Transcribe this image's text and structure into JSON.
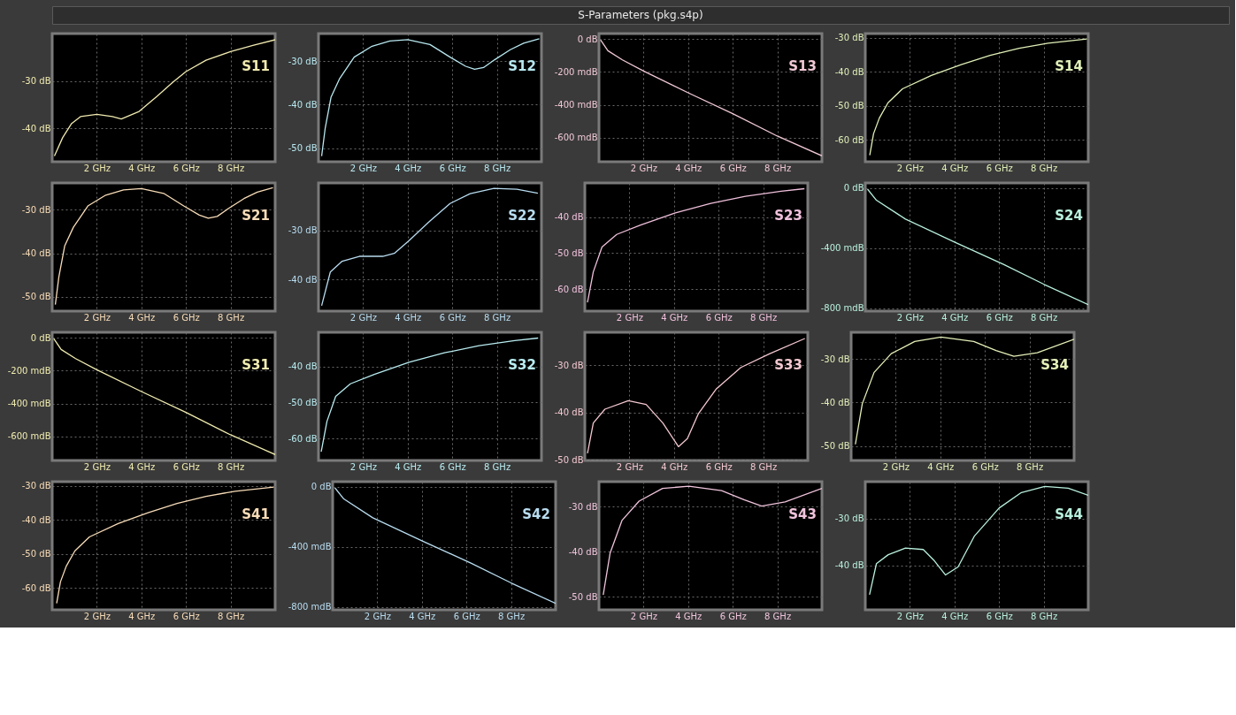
{
  "chart_data": [
    {
      "type": "other",
      "title": "S-Parameters (pkg.s4p)"
    },
    {
      "type": "line",
      "xlim": [
        0,
        10
      ],
      "xticks": [
        {
          "value": 2,
          "label": "2 GHz"
        },
        {
          "value": 4,
          "label": "4 GHz"
        },
        {
          "value": 6,
          "label": "6 GHz"
        },
        {
          "value": 8,
          "label": "8 GHz"
        }
      ],
      "ylim": [
        -47,
        -20
      ],
      "yticks": [
        {
          "value": -30,
          "label": "-30 dB"
        },
        {
          "value": -40,
          "label": "-40 dB"
        }
      ],
      "grid": true,
      "series": [
        {
          "name": "S11",
          "color": "#f0eab0",
          "x": [
            0.1,
            0.47,
            0.86,
            1.27,
            2,
            2.7,
            3.1,
            3.9,
            4.7,
            5.4,
            6.0,
            6.9,
            8.0,
            9.0,
            10
          ],
          "values": [
            -45.8,
            -41.9,
            -39.0,
            -37.5,
            -37.0,
            -37.5,
            -38.0,
            -36.4,
            -33.2,
            -30.3,
            -28.0,
            -25.6,
            -23.8,
            -22.5,
            -21.3
          ]
        }
      ]
    },
    {
      "type": "line",
      "xlim": [
        0,
        10
      ],
      "xticks": [
        {
          "value": 2,
          "label": "2 GHz"
        },
        {
          "value": 4,
          "label": "4 GHz"
        },
        {
          "value": 6,
          "label": "6 GHz"
        },
        {
          "value": 8,
          "label": "8 GHz"
        }
      ],
      "ylim": [
        -53.1,
        -23.7
      ],
      "yticks": [
        {
          "value": -30,
          "label": "-30 dB"
        },
        {
          "value": -40,
          "label": "-40 dB"
        },
        {
          "value": -50,
          "label": "-50 dB"
        }
      ],
      "grid": true,
      "series": [
        {
          "name": "S12",
          "color": "#b8e8f0",
          "x": [
            0.14,
            0.3,
            0.56,
            0.95,
            1.6,
            2.4,
            3.2,
            4.0,
            5.0,
            5.9,
            6.6,
            7.0,
            7.4,
            7.9,
            8.6,
            9.2,
            9.9
          ],
          "values": [
            -51.8,
            -45.4,
            -38.3,
            -34.0,
            -29.1,
            -26.6,
            -25.4,
            -25.1,
            -26.2,
            -29.1,
            -31.2,
            -31.9,
            -31.5,
            -29.7,
            -27.4,
            -25.9,
            -24.9
          ]
        }
      ]
    },
    {
      "type": "line",
      "xlim": [
        0,
        10
      ],
      "xticks": [
        {
          "value": 2,
          "label": "2 GHz"
        },
        {
          "value": 4,
          "label": "4 GHz"
        },
        {
          "value": 6,
          "label": "6 GHz"
        },
        {
          "value": 8,
          "label": "8 GHz"
        }
      ],
      "ylim": [
        -746,
        33
      ],
      "yticks": [
        {
          "value": 0,
          "label": "0 dB"
        },
        {
          "value": -200,
          "label": "-200 mdB"
        },
        {
          "value": -400,
          "label": "-400 mdB"
        },
        {
          "value": -600,
          "label": "-600 mdB"
        }
      ],
      "grid": true,
      "series": [
        {
          "name": "S13",
          "color": "#f0c8d4",
          "x": [
            0.07,
            0.4,
            1.05,
            2.0,
            4.0,
            6.0,
            8.0,
            10.0
          ],
          "values": [
            -5,
            -71,
            -127,
            -195,
            -327,
            -454,
            -590,
            -710
          ]
        }
      ]
    },
    {
      "type": "line",
      "xlim": [
        0,
        10
      ],
      "xticks": [
        {
          "value": 2,
          "label": "2 GHz"
        },
        {
          "value": 4,
          "label": "4 GHz"
        },
        {
          "value": 6,
          "label": "6 GHz"
        },
        {
          "value": 8,
          "label": "8 GHz"
        }
      ],
      "ylim": [
        -66.4,
        -28.8
      ],
      "yticks": [
        {
          "value": -30,
          "label": "-30 dB"
        },
        {
          "value": -40,
          "label": "-40 dB"
        },
        {
          "value": -50,
          "label": "-50 dB"
        },
        {
          "value": -60,
          "label": "-60 dB"
        }
      ],
      "grid": true,
      "series": [
        {
          "name": "S14",
          "color": "#e0f0b8",
          "x": [
            0.2,
            0.37,
            0.63,
            1.02,
            1.67,
            2.96,
            4.3,
            5.6,
            6.9,
            8.2,
            9.94
          ],
          "values": [
            -64.5,
            -58.2,
            -53.6,
            -49.1,
            -45.0,
            -41.1,
            -37.9,
            -35.2,
            -33.1,
            -31.6,
            -30.4
          ]
        }
      ]
    },
    {
      "type": "line",
      "xlim": [
        0,
        10
      ],
      "xticks": [
        {
          "value": 2,
          "label": "2 GHz"
        },
        {
          "value": 4,
          "label": "4 GHz"
        },
        {
          "value": 6,
          "label": "6 GHz"
        },
        {
          "value": 8,
          "label": "8 GHz"
        }
      ],
      "ylim": [
        -53.3,
        -23.8
      ],
      "yticks": [
        {
          "value": -30,
          "label": "-30 dB"
        },
        {
          "value": -40,
          "label": "-40 dB"
        },
        {
          "value": -50,
          "label": "-50 dB"
        }
      ],
      "grid": true,
      "series": [
        {
          "name": "S21",
          "color": "#f8dcb8",
          "x": [
            0.14,
            0.3,
            0.56,
            0.95,
            1.6,
            2.4,
            3.2,
            4.0,
            5.0,
            5.9,
            6.6,
            7.0,
            7.4,
            7.9,
            8.6,
            9.2,
            9.9
          ],
          "values": [
            -51.8,
            -45.4,
            -38.3,
            -34.0,
            -29.1,
            -26.6,
            -25.4,
            -25.1,
            -26.2,
            -29.1,
            -31.2,
            -31.9,
            -31.5,
            -29.7,
            -27.4,
            -25.9,
            -24.9
          ]
        }
      ]
    },
    {
      "type": "line",
      "xlim": [
        0,
        10
      ],
      "xticks": [
        {
          "value": 2,
          "label": "2 GHz"
        },
        {
          "value": 4,
          "label": "4 GHz"
        },
        {
          "value": 6,
          "label": "6 GHz"
        },
        {
          "value": 8,
          "label": "8 GHz"
        }
      ],
      "ylim": [
        -46.5,
        -20.3
      ],
      "yticks": [
        {
          "value": -30,
          "label": "-30 dB"
        },
        {
          "value": -40,
          "label": "-40 dB"
        }
      ],
      "grid": true,
      "series": [
        {
          "name": "S22",
          "color": "#b8dcf0",
          "x": [
            0.14,
            0.53,
            1.06,
            1.83,
            2.88,
            3.4,
            4.06,
            4.99,
            5.9,
            6.8,
            7.87,
            8.9,
            9.84
          ],
          "values": [
            -45.4,
            -38.5,
            -36.3,
            -35.3,
            -35.3,
            -34.7,
            -32.1,
            -28.1,
            -24.5,
            -22.5,
            -21.4,
            -21.6,
            -22.4
          ]
        }
      ]
    },
    {
      "type": "line",
      "xlim": [
        0,
        10
      ],
      "xticks": [
        {
          "value": 2,
          "label": "2 GHz"
        },
        {
          "value": 4,
          "label": "4 GHz"
        },
        {
          "value": 6,
          "label": "6 GHz"
        },
        {
          "value": 8,
          "label": "8 GHz"
        }
      ],
      "ylim": [
        -66.1,
        -30.5
      ],
      "yticks": [
        {
          "value": -40,
          "label": "-40 dB"
        },
        {
          "value": -50,
          "label": "-50 dB"
        },
        {
          "value": -60,
          "label": "-60 dB"
        }
      ],
      "grid": true,
      "series": [
        {
          "name": "S23",
          "color": "#f0c0dc",
          "x": [
            0.12,
            0.38,
            0.77,
            1.43,
            2.5,
            4.06,
            5.65,
            7.2,
            8.8,
            9.85
          ],
          "values": [
            -63.7,
            -55.2,
            -48.3,
            -44.8,
            -42.2,
            -38.8,
            -36.2,
            -34.2,
            -32.8,
            -32.1
          ]
        }
      ]
    },
    {
      "type": "line",
      "xlim": [
        0,
        10
      ],
      "xticks": [
        {
          "value": 2,
          "label": "2 GHz"
        },
        {
          "value": 4,
          "label": "4 GHz"
        },
        {
          "value": 6,
          "label": "6 GHz"
        },
        {
          "value": 8,
          "label": "8 GHz"
        }
      ],
      "ylim": [
        -818,
        34
      ],
      "yticks": [
        {
          "value": 0,
          "label": "0 dB"
        },
        {
          "value": -400,
          "label": "-400 mdB"
        },
        {
          "value": -800,
          "label": "-800 mdB"
        }
      ],
      "grid": true,
      "series": [
        {
          "name": "S24",
          "color": "#b8f0dc",
          "x": [
            0.1,
            0.5,
            1.8,
            4.0,
            6.2,
            8.0,
            10.0
          ],
          "values": [
            -7,
            -81,
            -206,
            -359,
            -507,
            -639,
            -775
          ]
        }
      ]
    },
    {
      "type": "line",
      "xlim": [
        0,
        10
      ],
      "xticks": [
        {
          "value": 2,
          "label": "2 GHz"
        },
        {
          "value": 4,
          "label": "4 GHz"
        },
        {
          "value": 6,
          "label": "6 GHz"
        },
        {
          "value": 8,
          "label": "8 GHz"
        }
      ],
      "ylim": [
        -746,
        33
      ],
      "yticks": [
        {
          "value": 0,
          "label": "0 dB"
        },
        {
          "value": -200,
          "label": "-200 mdB"
        },
        {
          "value": -400,
          "label": "-400 mdB"
        },
        {
          "value": -600,
          "label": "-600 mdB"
        }
      ],
      "grid": true,
      "series": [
        {
          "name": "S31",
          "color": "#f0ecb0",
          "x": [
            0.07,
            0.4,
            1.05,
            2.0,
            4.0,
            6.0,
            8.0,
            10.0
          ],
          "values": [
            -5,
            -71,
            -127,
            -195,
            -327,
            -454,
            -590,
            -710
          ]
        }
      ]
    },
    {
      "type": "line",
      "xlim": [
        0,
        10
      ],
      "xticks": [
        {
          "value": 2,
          "label": "2 GHz"
        },
        {
          "value": 4,
          "label": "4 GHz"
        },
        {
          "value": 6,
          "label": "6 GHz"
        },
        {
          "value": 8,
          "label": "8 GHz"
        }
      ],
      "ylim": [
        -66.1,
        -30.5
      ],
      "yticks": [
        {
          "value": -40,
          "label": "-40 dB"
        },
        {
          "value": -50,
          "label": "-50 dB"
        },
        {
          "value": -60,
          "label": "-60 dB"
        }
      ],
      "grid": true,
      "series": [
        {
          "name": "S32",
          "color": "#b8ecf0",
          "x": [
            0.12,
            0.38,
            0.77,
            1.43,
            2.5,
            4.06,
            5.65,
            7.2,
            8.8,
            9.85
          ],
          "values": [
            -63.7,
            -55.2,
            -48.3,
            -44.8,
            -42.2,
            -38.8,
            -36.2,
            -34.2,
            -32.8,
            -32.1
          ]
        }
      ]
    },
    {
      "type": "line",
      "xlim": [
        0,
        10
      ],
      "xticks": [
        {
          "value": 2,
          "label": "2 GHz"
        },
        {
          "value": 4,
          "label": "4 GHz"
        },
        {
          "value": 6,
          "label": "6 GHz"
        },
        {
          "value": 8,
          "label": "8 GHz"
        }
      ],
      "ylim": [
        -50.1,
        -23.1
      ],
      "yticks": [
        {
          "value": -30,
          "label": "-30 dB"
        },
        {
          "value": -40,
          "label": "-40 dB"
        },
        {
          "value": -50,
          "label": "-50 dB"
        }
      ],
      "grid": true,
      "series": [
        {
          "name": "S33",
          "color": "#f4c8d0",
          "x": [
            0.12,
            0.38,
            0.9,
            1.95,
            2.75,
            3.5,
            4.2,
            4.6,
            5.1,
            5.9,
            7.0,
            8.3,
            9.87
          ],
          "values": [
            -48.6,
            -42.2,
            -39.3,
            -37.5,
            -38.3,
            -42.2,
            -47.2,
            -45.5,
            -40.2,
            -35.0,
            -30.5,
            -27.6,
            -24.4
          ]
        }
      ]
    },
    {
      "type": "line",
      "xlim": [
        0,
        10
      ],
      "xticks": [
        {
          "value": 2,
          "label": "2 GHz"
        },
        {
          "value": 4,
          "label": "4 GHz"
        },
        {
          "value": 6,
          "label": "6 GHz"
        },
        {
          "value": 8,
          "label": "8 GHz"
        }
      ],
      "ylim": [
        -53.3,
        -23.9
      ],
      "yticks": [
        {
          "value": -30,
          "label": "-30 dB"
        },
        {
          "value": -40,
          "label": "-40 dB"
        },
        {
          "value": -50,
          "label": "-50 dB"
        }
      ],
      "grid": true,
      "series": [
        {
          "name": "S34",
          "color": "#e4f0b8",
          "x": [
            0.19,
            0.5,
            1.03,
            1.8,
            2.85,
            4.03,
            5.5,
            6.5,
            7.3,
            8.35,
            10
          ],
          "values": [
            -49.6,
            -40.3,
            -33.1,
            -28.8,
            -26.0,
            -25.0,
            -26.0,
            -28.1,
            -29.4,
            -28.6,
            -25.5
          ]
        }
      ]
    },
    {
      "type": "line",
      "xlim": [
        0,
        10
      ],
      "xticks": [
        {
          "value": 2,
          "label": "2 GHz"
        },
        {
          "value": 4,
          "label": "4 GHz"
        },
        {
          "value": 6,
          "label": "6 GHz"
        },
        {
          "value": 8,
          "label": "8 GHz"
        }
      ],
      "ylim": [
        -66.4,
        -28.8
      ],
      "yticks": [
        {
          "value": -30,
          "label": "-30 dB"
        },
        {
          "value": -40,
          "label": "-40 dB"
        },
        {
          "value": -50,
          "label": "-50 dB"
        },
        {
          "value": -60,
          "label": "-60 dB"
        }
      ],
      "grid": true,
      "series": [
        {
          "name": "S41",
          "color": "#f8dcb8",
          "x": [
            0.2,
            0.37,
            0.63,
            1.02,
            1.67,
            2.96,
            4.3,
            5.6,
            6.9,
            8.2,
            9.94
          ],
          "values": [
            -64.5,
            -58.2,
            -53.6,
            -49.1,
            -45.0,
            -41.1,
            -37.9,
            -35.2,
            -33.1,
            -31.6,
            -30.4
          ]
        }
      ]
    },
    {
      "type": "line",
      "xlim": [
        0,
        10
      ],
      "xticks": [
        {
          "value": 2,
          "label": "2 GHz"
        },
        {
          "value": 4,
          "label": "4 GHz"
        },
        {
          "value": 6,
          "label": "6 GHz"
        },
        {
          "value": 8,
          "label": "8 GHz"
        }
      ],
      "ylim": [
        -818,
        34
      ],
      "yticks": [
        {
          "value": 0,
          "label": "0 dB"
        },
        {
          "value": -400,
          "label": "-400 mdB"
        },
        {
          "value": -800,
          "label": "-800 mdB"
        }
      ],
      "grid": true,
      "series": [
        {
          "name": "S42",
          "color": "#b8dcf0",
          "x": [
            0.1,
            0.5,
            1.8,
            4.0,
            6.2,
            8.0,
            10.0
          ],
          "values": [
            -7,
            -81,
            -206,
            -359,
            -507,
            -639,
            -775
          ]
        }
      ]
    },
    {
      "type": "line",
      "xlim": [
        0,
        10
      ],
      "xticks": [
        {
          "value": 2,
          "label": "2 GHz"
        },
        {
          "value": 4,
          "label": "4 GHz"
        },
        {
          "value": 6,
          "label": "6 GHz"
        },
        {
          "value": 8,
          "label": "8 GHz"
        }
      ],
      "ylim": [
        -52.9,
        -24.5
      ],
      "yticks": [
        {
          "value": -30,
          "label": "-30 dB"
        },
        {
          "value": -40,
          "label": "-40 dB"
        },
        {
          "value": -50,
          "label": "-50 dB"
        }
      ],
      "grid": true,
      "series": [
        {
          "name": "S43",
          "color": "#f0c4dc",
          "x": [
            0.19,
            0.5,
            1.03,
            1.8,
            2.85,
            4.03,
            5.5,
            6.5,
            7.3,
            8.35,
            10
          ],
          "values": [
            -49.6,
            -40.3,
            -33.1,
            -28.8,
            -26.0,
            -25.5,
            -26.5,
            -28.5,
            -29.9,
            -29.0,
            -26.0
          ]
        }
      ]
    },
    {
      "type": "line",
      "xlim": [
        0,
        10
      ],
      "xticks": [
        {
          "value": 2,
          "label": "2 GHz"
        },
        {
          "value": 4,
          "label": "4 GHz"
        },
        {
          "value": 6,
          "label": "6 GHz"
        },
        {
          "value": 8,
          "label": "8 GHz"
        }
      ],
      "ylim": [
        -49.4,
        -22.2
      ],
      "yticks": [
        {
          "value": -30,
          "label": "-30 dB"
        },
        {
          "value": -40,
          "label": "-40 dB"
        }
      ],
      "grid": true,
      "series": [
        {
          "name": "S44",
          "color": "#b8f0dc",
          "x": [
            0.19,
            0.5,
            1.03,
            1.8,
            2.6,
            3.1,
            3.6,
            4.16,
            4.9,
            6.0,
            7.0,
            8.05,
            9.1,
            10
          ],
          "values": [
            -46.2,
            -39.6,
            -37.7,
            -36.3,
            -36.6,
            -39.0,
            -42.0,
            -40.3,
            -33.7,
            -27.8,
            -24.5,
            -23.2,
            -23.6,
            -25.1
          ]
        }
      ]
    }
  ]
}
